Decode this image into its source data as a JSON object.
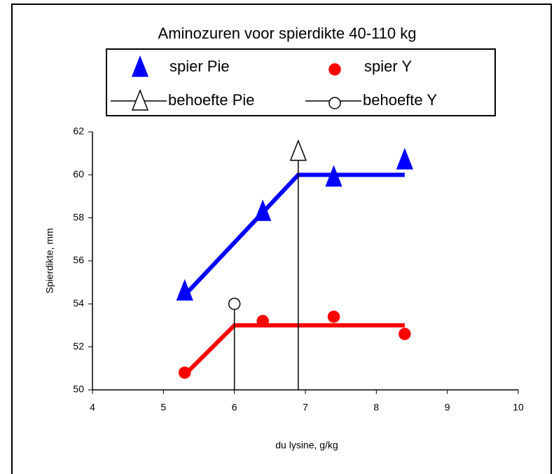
{
  "chart_data": {
    "type": "scatter",
    "title": "Aminozuren voor spierdikte 40-110 kg",
    "x_label": "du lysine, g/kg",
    "y_label": "Spierdikte, mm",
    "xlim": [
      4,
      10
    ],
    "xticks": [
      4,
      5,
      6,
      7,
      8,
      9,
      10
    ],
    "ylim": [
      50,
      62
    ],
    "yticks": [
      50,
      52,
      54,
      56,
      58,
      60,
      62
    ],
    "grid": false,
    "series": [
      {
        "name": "spier Pie",
        "color": "#0000ff",
        "marker": "triangle",
        "filled": true,
        "x": [
          5.3,
          6.4,
          7.4,
          8.4
        ],
        "values": [
          54.5,
          58.2,
          59.8,
          60.6
        ]
      },
      {
        "name": "spier Y",
        "color": "#ff0000",
        "marker": "circle",
        "filled": true,
        "x": [
          5.3,
          6.4,
          7.4,
          8.4
        ],
        "values": [
          50.8,
          53.2,
          53.4,
          52.6
        ]
      },
      {
        "name": "behoefte Pie",
        "color": "#000000",
        "marker": "triangle",
        "filled": false,
        "dropline": true,
        "x": [
          6.9
        ],
        "values": [
          61
        ]
      },
      {
        "name": "behoefte Y",
        "color": "#000000",
        "marker": "circle",
        "filled": false,
        "dropline": true,
        "x": [
          6.0
        ],
        "values": [
          54
        ]
      }
    ],
    "fits": [
      {
        "color": "#0000ff",
        "x": [
          5.3,
          6.9,
          8.4
        ],
        "values": [
          54.4,
          60,
          60
        ]
      },
      {
        "color": "#ff0000",
        "x": [
          5.3,
          6.0,
          8.4
        ],
        "values": [
          50.7,
          53,
          53
        ]
      }
    ]
  }
}
